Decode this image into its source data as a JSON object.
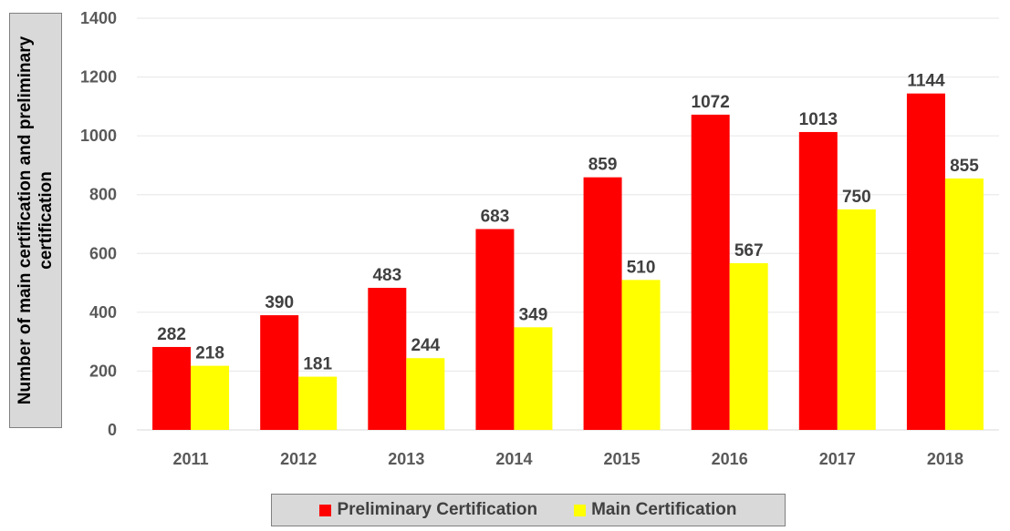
{
  "chart_data": {
    "type": "bar",
    "title": "",
    "xlabel": "",
    "ylabel": "Number of main certification and preliminary certification",
    "categories": [
      "2011",
      "2012",
      "2013",
      "2014",
      "2015",
      "2016",
      "2017",
      "2018"
    ],
    "series": [
      {
        "name": "Preliminary Certification",
        "color": "#ff0000",
        "values": [
          282,
          390,
          483,
          683,
          859,
          1072,
          1013,
          1144
        ]
      },
      {
        "name": "Main Certification",
        "color": "#ffff00",
        "values": [
          218,
          181,
          244,
          349,
          510,
          567,
          750,
          855
        ]
      }
    ],
    "ylim": [
      0,
      1400
    ],
    "yticks": [
      "0",
      "200",
      "400",
      "600",
      "800",
      "1000",
      "1200",
      "1400"
    ],
    "grid": true,
    "legend_position": "bottom"
  }
}
